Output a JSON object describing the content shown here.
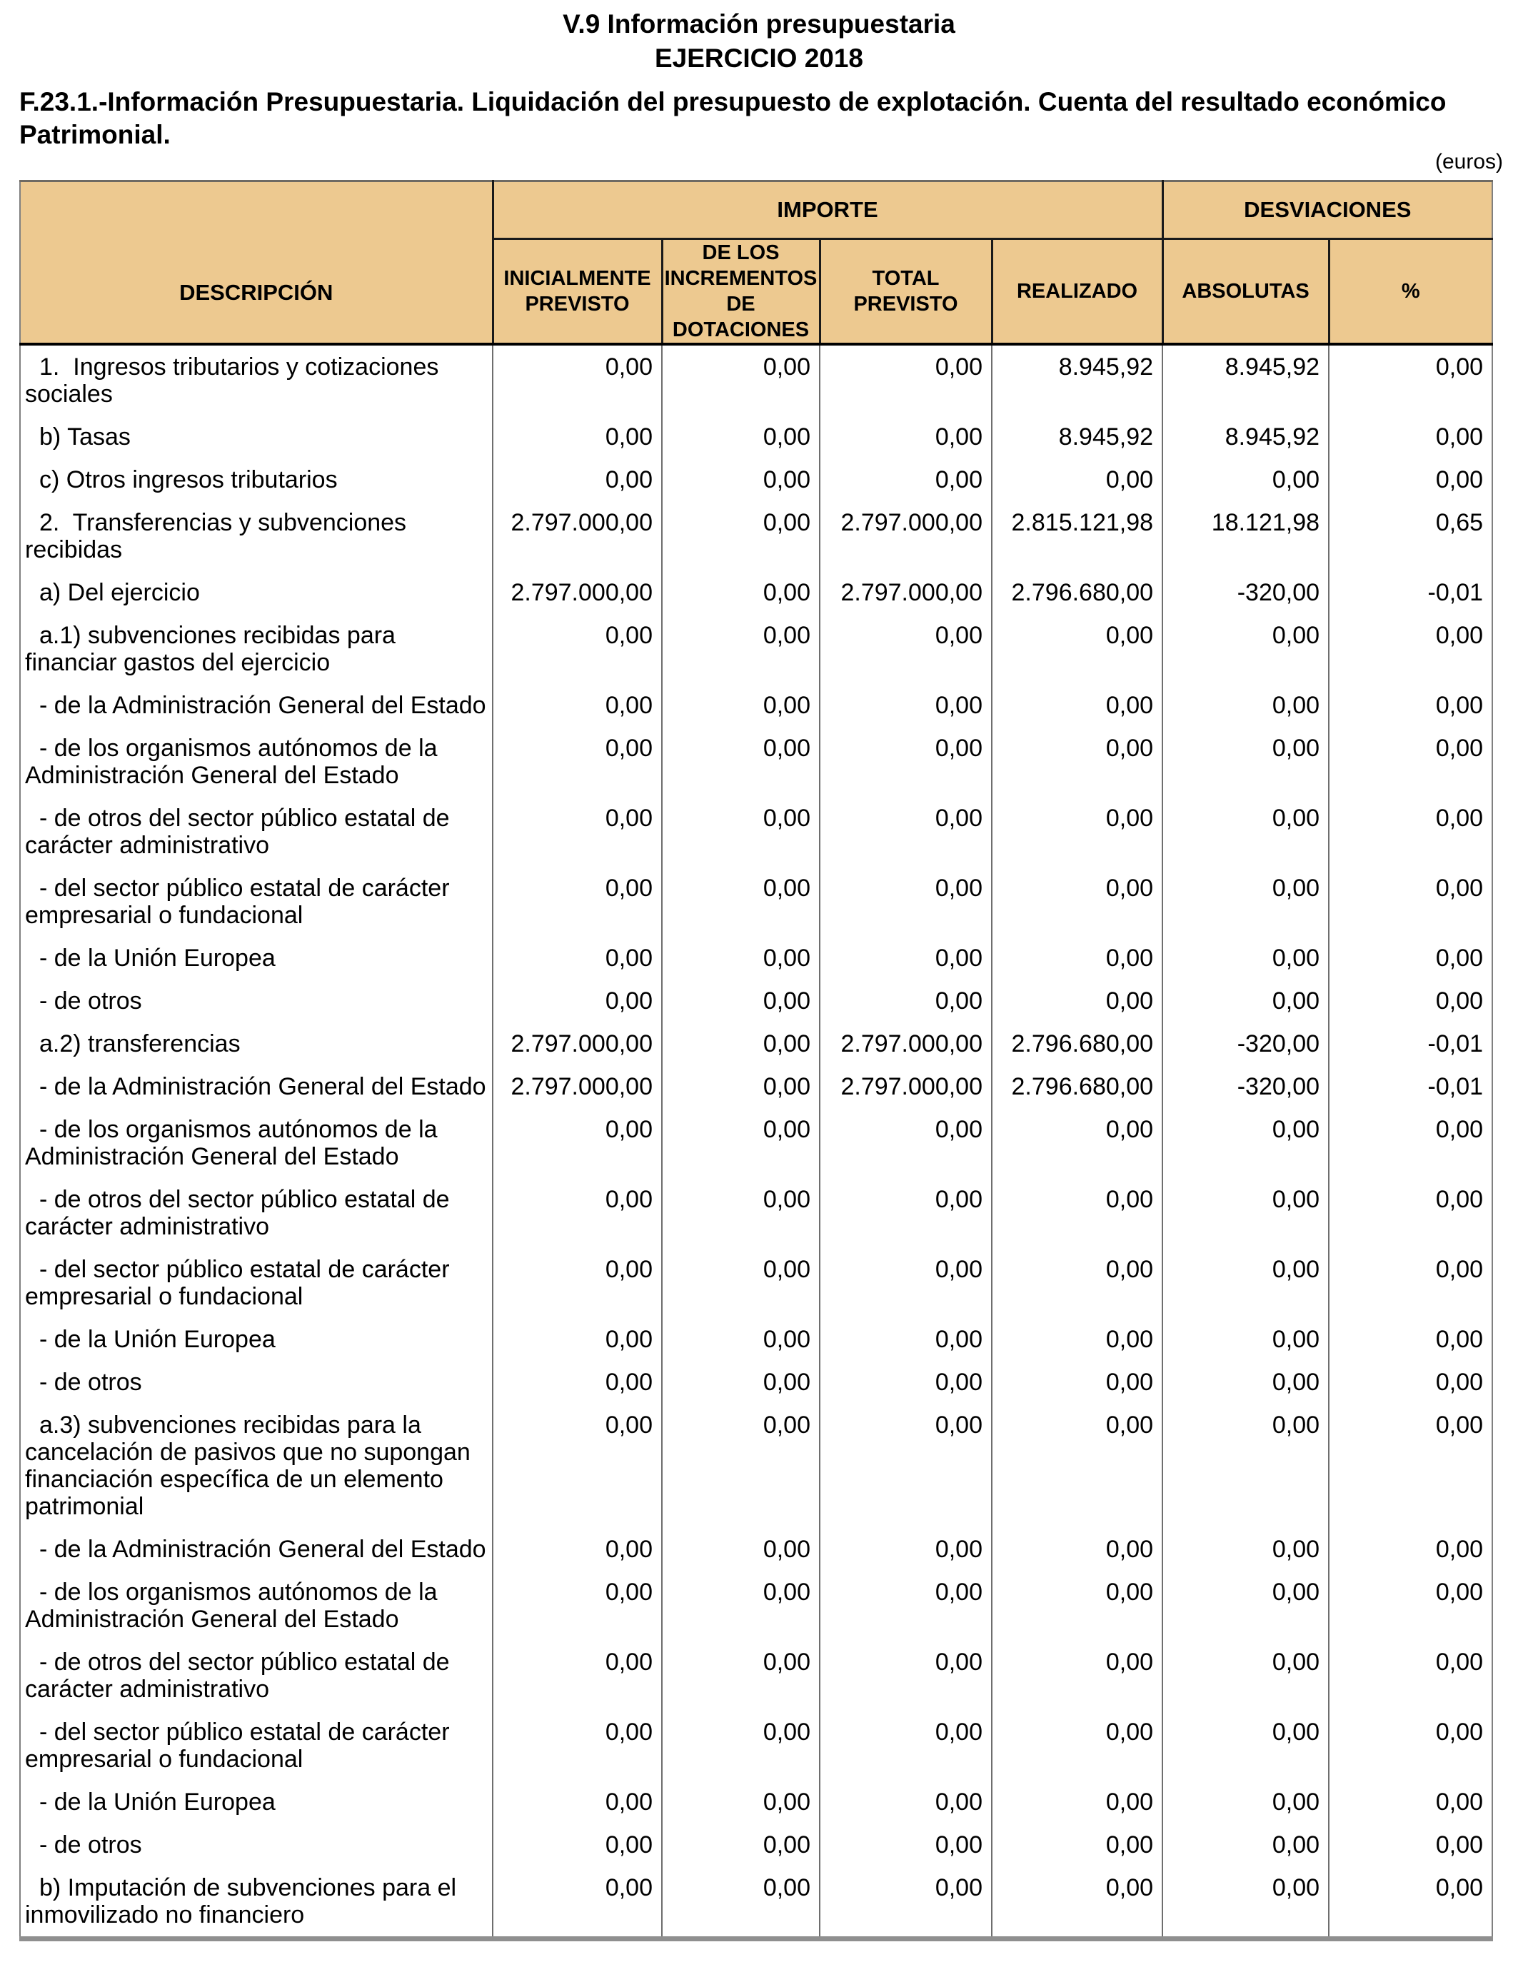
{
  "page": {
    "title_line1": "V.9 Información presupuestaria",
    "title_line2": "EJERCICIO 2018",
    "subtitle": "F.23.1.-Información Presupuestaria. Liquidación del presupuesto de explotación. Cuenta del resultado económico Patrimonial.",
    "unit_note": "(euros)"
  },
  "table": {
    "colors": {
      "header_bg": "#edc990"
    },
    "header": {
      "description": "DESCRIPCIÓN",
      "importe_group": "IMPORTE",
      "desviaciones_group": "DESVIACIONES",
      "columns": [
        "INICIALMENTE PREVISTO",
        "DE LOS INCREMENTOS DE DOTACIONES",
        "TOTAL PREVISTO",
        "REALIZADO",
        "ABSOLUTAS",
        "%"
      ]
    },
    "rows": [
      {
        "desc": "1.  Ingresos tributarios y cotizaciones sociales",
        "values": [
          "0,00",
          "0,00",
          "0,00",
          "8.945,92",
          "8.945,92",
          "0,00"
        ]
      },
      {
        "desc": "b) Tasas",
        "values": [
          "0,00",
          "0,00",
          "0,00",
          "8.945,92",
          "8.945,92",
          "0,00"
        ]
      },
      {
        "desc": "c) Otros ingresos tributarios",
        "values": [
          "0,00",
          "0,00",
          "0,00",
          "0,00",
          "0,00",
          "0,00"
        ]
      },
      {
        "desc": "2.  Transferencias y subvenciones recibidas",
        "values": [
          "2.797.000,00",
          "0,00",
          "2.797.000,00",
          "2.815.121,98",
          "18.121,98",
          "0,65"
        ]
      },
      {
        "desc": "a) Del ejercicio",
        "values": [
          "2.797.000,00",
          "0,00",
          "2.797.000,00",
          "2.796.680,00",
          "-320,00",
          "-0,01"
        ]
      },
      {
        "desc": "a.1) subvenciones recibidas para financiar gastos del ejercicio",
        "values": [
          "0,00",
          "0,00",
          "0,00",
          "0,00",
          "0,00",
          "0,00"
        ]
      },
      {
        "desc": "- de la Administración General del Estado",
        "values": [
          "0,00",
          "0,00",
          "0,00",
          "0,00",
          "0,00",
          "0,00"
        ]
      },
      {
        "desc": "- de los organismos autónomos de la Administración General del Estado",
        "values": [
          "0,00",
          "0,00",
          "0,00",
          "0,00",
          "0,00",
          "0,00"
        ]
      },
      {
        "desc": "- de otros del sector público estatal de carácter administrativo",
        "values": [
          "0,00",
          "0,00",
          "0,00",
          "0,00",
          "0,00",
          "0,00"
        ]
      },
      {
        "desc": "- del sector público estatal de carácter empresarial o fundacional",
        "values": [
          "0,00",
          "0,00",
          "0,00",
          "0,00",
          "0,00",
          "0,00"
        ]
      },
      {
        "desc": "- de la Unión Europea",
        "values": [
          "0,00",
          "0,00",
          "0,00",
          "0,00",
          "0,00",
          "0,00"
        ]
      },
      {
        "desc": "- de otros",
        "values": [
          "0,00",
          "0,00",
          "0,00",
          "0,00",
          "0,00",
          "0,00"
        ]
      },
      {
        "desc": "a.2) transferencias",
        "values": [
          "2.797.000,00",
          "0,00",
          "2.797.000,00",
          "2.796.680,00",
          "-320,00",
          "-0,01"
        ]
      },
      {
        "desc": "- de la Administración General del Estado",
        "values": [
          "2.797.000,00",
          "0,00",
          "2.797.000,00",
          "2.796.680,00",
          "-320,00",
          "-0,01"
        ]
      },
      {
        "desc": "- de los organismos autónomos de la Administración General del Estado",
        "values": [
          "0,00",
          "0,00",
          "0,00",
          "0,00",
          "0,00",
          "0,00"
        ]
      },
      {
        "desc": "- de otros del sector público estatal de carácter administrativo",
        "values": [
          "0,00",
          "0,00",
          "0,00",
          "0,00",
          "0,00",
          "0,00"
        ]
      },
      {
        "desc": "- del sector público estatal de carácter empresarial o fundacional",
        "values": [
          "0,00",
          "0,00",
          "0,00",
          "0,00",
          "0,00",
          "0,00"
        ]
      },
      {
        "desc": "- de la Unión Europea",
        "values": [
          "0,00",
          "0,00",
          "0,00",
          "0,00",
          "0,00",
          "0,00"
        ]
      },
      {
        "desc": "- de otros",
        "values": [
          "0,00",
          "0,00",
          "0,00",
          "0,00",
          "0,00",
          "0,00"
        ]
      },
      {
        "desc": "a.3) subvenciones recibidas para la cancelación de pasivos que no supongan financiación específica de un elemento patrimonial",
        "values": [
          "0,00",
          "0,00",
          "0,00",
          "0,00",
          "0,00",
          "0,00"
        ]
      },
      {
        "desc": "- de la Administración General del Estado",
        "values": [
          "0,00",
          "0,00",
          "0,00",
          "0,00",
          "0,00",
          "0,00"
        ]
      },
      {
        "desc": "- de los organismos autónomos de la Administración General del Estado",
        "values": [
          "0,00",
          "0,00",
          "0,00",
          "0,00",
          "0,00",
          "0,00"
        ]
      },
      {
        "desc": "- de otros del sector público estatal de carácter administrativo",
        "values": [
          "0,00",
          "0,00",
          "0,00",
          "0,00",
          "0,00",
          "0,00"
        ]
      },
      {
        "desc": "- del sector público estatal de carácter empresarial o fundacional",
        "values": [
          "0,00",
          "0,00",
          "0,00",
          "0,00",
          "0,00",
          "0,00"
        ]
      },
      {
        "desc": "- de la Unión Europea",
        "values": [
          "0,00",
          "0,00",
          "0,00",
          "0,00",
          "0,00",
          "0,00"
        ]
      },
      {
        "desc": "- de otros",
        "values": [
          "0,00",
          "0,00",
          "0,00",
          "0,00",
          "0,00",
          "0,00"
        ]
      },
      {
        "desc": "b) Imputación de subvenciones para el inmovilizado no financiero",
        "values": [
          "0,00",
          "0,00",
          "0,00",
          "0,00",
          "0,00",
          "0,00"
        ]
      }
    ]
  }
}
